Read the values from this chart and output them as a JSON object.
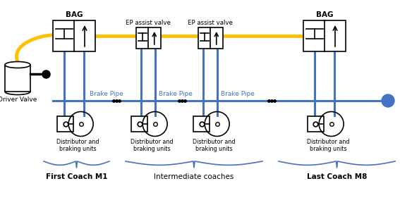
{
  "bg_color": "#ffffff",
  "blue": "#4472C4",
  "yellow": "#FFC000",
  "black": "#000000",
  "labels": {
    "bag": "BAG",
    "ep1": "EP assist valve",
    "ep2": "EP assist valve",
    "bag2": "BAG",
    "brake_pipe1": "Brake Pipe",
    "brake_pipe2": "Brake Pipe",
    "brake_pipe3": "Brake Pipe",
    "driver_valve": "Driver Valve",
    "dist1": "Distributor and\nbraking units",
    "dist2": "Distributor and\nbraking units",
    "dist3": "Distributor and\nbraking units",
    "dist4": "Distributor and\nbraking units",
    "coach1": "First Coach M1",
    "coaches": "Intermediate coaches",
    "coach_last": "Last Coach M8"
  },
  "figsize": [
    5.67,
    3.01
  ],
  "dpi": 100,
  "xlim": [
    0,
    5.67
  ],
  "ylim": [
    0,
    3.01
  ]
}
